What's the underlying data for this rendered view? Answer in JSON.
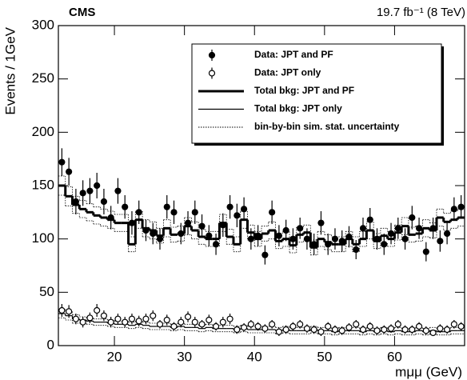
{
  "chart_data": {
    "type": "histogram",
    "title": "CMS",
    "subtitle": "19.7 fb⁻¹ (8 TeV)",
    "x_label": "mμμ (GeV)",
    "y_label": "Events / 1GeV",
    "bins": [
      12,
      13,
      14,
      15,
      16,
      17,
      18,
      19,
      20,
      21,
      22,
      23,
      24,
      25,
      26,
      27,
      28,
      29,
      30,
      31,
      32,
      33,
      34,
      35,
      36,
      37,
      38,
      39,
      40,
      41,
      42,
      43,
      44,
      45,
      46,
      47,
      48,
      49,
      50,
      51,
      52,
      53,
      54,
      55,
      56,
      57,
      58,
      59,
      60,
      61,
      62,
      63,
      64,
      65,
      66,
      67,
      68,
      69,
      70
    ],
    "xlim": [
      12,
      70
    ],
    "xticks": [
      20,
      30,
      40,
      50,
      60
    ],
    "ylim": [
      0,
      300
    ],
    "yticks": [
      0,
      50,
      100,
      150,
      200,
      250,
      300
    ],
    "legend_position": "upper right",
    "legend": [
      "Data: JPT and PF",
      "Data: JPT only",
      "Total bkg: JPT and PF",
      "Total bkg: JPT only",
      "bin-by-bin sim. stat. uncertainty"
    ],
    "series": [
      {
        "style": "filled-points",
        "color": "#000000",
        "values": [
          172,
          163,
          135,
          143,
          145,
          150,
          135,
          120,
          145,
          130,
          115,
          125,
          108,
          105,
          100,
          130,
          125,
          105,
          115,
          125,
          112,
          103,
          95,
          113,
          130,
          122,
          128,
          100,
          103,
          85,
          125,
          103,
          108,
          100,
          110,
          100,
          95,
          115,
          95,
          100,
          98,
          102,
          90,
          110,
          118,
          100,
          95,
          105,
          110,
          100,
          120,
          110,
          88,
          110,
          98,
          105,
          128,
          130
        ],
        "errors": [
          13,
          13,
          12,
          12,
          12,
          12,
          12,
          11,
          12,
          11,
          11,
          11,
          10,
          10,
          10,
          11,
          11,
          10,
          11,
          11,
          11,
          10,
          10,
          11,
          11,
          11,
          11,
          10,
          10,
          9,
          11,
          10,
          10,
          10,
          10,
          10,
          10,
          11,
          10,
          10,
          10,
          10,
          9,
          10,
          11,
          10,
          10,
          10,
          10,
          10,
          11,
          10,
          9,
          10,
          10,
          10,
          11,
          11
        ]
      },
      {
        "style": "open-points",
        "color": "#000000",
        "values": [
          33,
          32,
          25,
          22,
          26,
          33,
          28,
          22,
          25,
          22,
          25,
          23,
          25,
          28,
          20,
          24,
          18,
          22,
          27,
          22,
          20,
          24,
          18,
          22,
          25,
          15,
          17,
          20,
          18,
          16,
          20,
          13,
          15,
          18,
          20,
          16,
          15,
          13,
          18,
          15,
          14,
          17,
          20,
          15,
          18,
          14,
          15,
          16,
          20,
          15,
          15,
          18,
          14,
          12,
          16,
          15,
          20,
          18
        ],
        "errors": [
          6,
          6,
          5,
          5,
          5,
          6,
          5,
          5,
          5,
          5,
          5,
          5,
          5,
          5,
          4,
          5,
          4,
          5,
          5,
          5,
          4,
          5,
          4,
          5,
          5,
          4,
          4,
          4,
          4,
          4,
          4,
          4,
          4,
          4,
          4,
          4,
          4,
          4,
          4,
          4,
          4,
          4,
          4,
          4,
          4,
          4,
          4,
          4,
          4,
          4,
          4,
          4,
          4,
          3,
          4,
          4,
          4,
          4
        ]
      },
      {
        "style": "thick-step",
        "color": "#000000",
        "values": [
          150,
          140,
          132,
          128,
          125,
          122,
          120,
          118,
          115,
          115,
          95,
          118,
          110,
          108,
          103,
          110,
          104,
          105,
          112,
          108,
          102,
          100,
          100,
          115,
          102,
          95,
          118,
          106,
          100,
          105,
          108,
          98,
          100,
          94,
          104,
          106,
          92,
          100,
          97,
          95,
          95,
          100,
          95,
          100,
          108,
          98,
          103,
          100,
          106,
          112,
          104,
          105,
          110,
          108,
          120,
          116,
          118,
          120
        ],
        "uncertainty": [
          9,
          9,
          8,
          8,
          8,
          8,
          8,
          8,
          8,
          8,
          7,
          8,
          8,
          8,
          7,
          8,
          7,
          7,
          8,
          8,
          7,
          7,
          7,
          8,
          7,
          7,
          8,
          7,
          7,
          7,
          8,
          7,
          7,
          7,
          7,
          7,
          7,
          7,
          7,
          7,
          7,
          7,
          7,
          7,
          8,
          7,
          7,
          7,
          7,
          8,
          7,
          7,
          8,
          7,
          8,
          8,
          8,
          8
        ]
      },
      {
        "style": "thin-step",
        "color": "#000000",
        "values": [
          30,
          28,
          25,
          24,
          23,
          22,
          22,
          21,
          20,
          20,
          19,
          20,
          19,
          18,
          18,
          18,
          17,
          18,
          17,
          17,
          16,
          17,
          16,
          16,
          16,
          15,
          16,
          15,
          15,
          15,
          15,
          14,
          15,
          14,
          14,
          14,
          15,
          14,
          14,
          13,
          14,
          14,
          14,
          13,
          14,
          13,
          14,
          13,
          14,
          13,
          13,
          14,
          13,
          14,
          13,
          13,
          14,
          14
        ],
        "uncertainty": [
          4,
          4,
          4,
          3,
          3,
          3,
          3,
          3,
          3,
          3,
          3,
          3,
          3,
          3,
          3,
          3,
          3,
          3,
          3,
          3,
          3,
          3,
          3,
          3,
          3,
          3,
          3,
          3,
          3,
          3,
          3,
          3,
          3,
          3,
          3,
          3,
          3,
          3,
          3,
          3,
          3,
          3,
          3,
          3,
          3,
          3,
          3,
          3,
          3,
          3,
          3,
          3,
          3,
          3,
          3,
          3,
          3,
          3
        ]
      }
    ]
  }
}
